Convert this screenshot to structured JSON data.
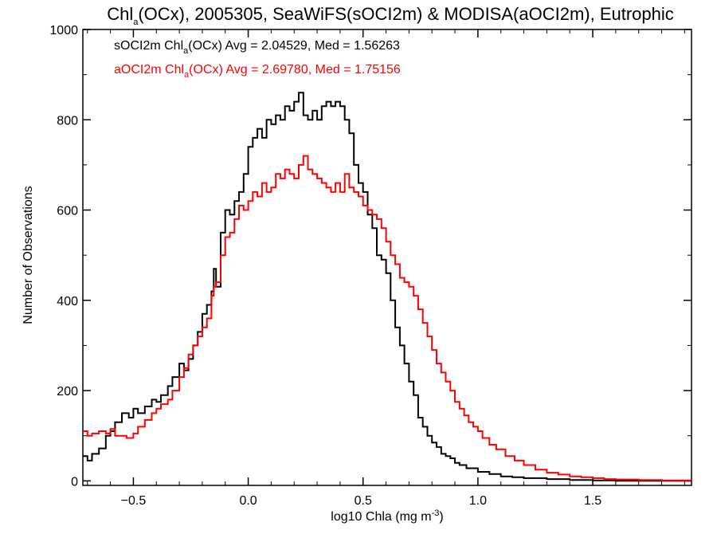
{
  "chart_data": {
    "type": "line",
    "title": {
      "prefix": "Chl",
      "sub": "a",
      "suffix": "(OCx), 2005305, SeaWiFS(sOCI2m) & MODISA(aOCI2m), Eutrophic"
    },
    "xlabel": {
      "prefix": "log10 Chla (mg m",
      "sup": "-3",
      "suffix": ")"
    },
    "ylabel": "Number of Observations",
    "xlim": [
      -0.72,
      1.93
    ],
    "ylim": [
      -10,
      1000
    ],
    "xticks": [
      -0.5,
      0.0,
      0.5,
      1.0,
      1.5
    ],
    "xtick_labels": [
      "−0.5",
      "0.0",
      "0.5",
      "1.0",
      "1.5"
    ],
    "yticks": [
      0,
      200,
      400,
      600,
      800,
      1000
    ],
    "ytick_labels": [
      "0",
      "200",
      "400",
      "600",
      "800",
      "1000"
    ],
    "grid": false,
    "legend": [
      {
        "prefix": "sOCI2m Chl",
        "sub": "a",
        "suffix": "(OCx) Avg = 2.04529, Med = 1.56263",
        "color": "#000000"
      },
      {
        "prefix": "aOCI2m Chl",
        "sub": "a",
        "suffix": "(OCx) Avg = 2.69780, Med = 1.75156",
        "color": "#ff0000"
      }
    ],
    "series": [
      {
        "color": "#000000",
        "style": "step",
        "points": [
          [
            -0.72,
            55
          ],
          [
            -0.7,
            45
          ],
          [
            -0.68,
            60
          ],
          [
            -0.65,
            72
          ],
          [
            -0.62,
            100
          ],
          [
            -0.6,
            110
          ],
          [
            -0.58,
            130
          ],
          [
            -0.55,
            150
          ],
          [
            -0.52,
            140
          ],
          [
            -0.5,
            160
          ],
          [
            -0.48,
            150
          ],
          [
            -0.45,
            165
          ],
          [
            -0.42,
            180
          ],
          [
            -0.4,
            175
          ],
          [
            -0.38,
            190
          ],
          [
            -0.35,
            210
          ],
          [
            -0.33,
            230
          ],
          [
            -0.3,
            260
          ],
          [
            -0.28,
            245
          ],
          [
            -0.26,
            270
          ],
          [
            -0.24,
            300
          ],
          [
            -0.22,
            330
          ],
          [
            -0.2,
            370
          ],
          [
            -0.18,
            390
          ],
          [
            -0.16,
            420
          ],
          [
            -0.15,
            470
          ],
          [
            -0.14,
            430
          ],
          [
            -0.12,
            550
          ],
          [
            -0.1,
            600
          ],
          [
            -0.08,
            590
          ],
          [
            -0.06,
            620
          ],
          [
            -0.04,
            640
          ],
          [
            -0.02,
            680
          ],
          [
            0.0,
            740
          ],
          [
            0.02,
            760
          ],
          [
            0.04,
            780
          ],
          [
            0.06,
            760
          ],
          [
            0.08,
            800
          ],
          [
            0.1,
            790
          ],
          [
            0.12,
            810
          ],
          [
            0.14,
            800
          ],
          [
            0.16,
            830
          ],
          [
            0.18,
            820
          ],
          [
            0.2,
            840
          ],
          [
            0.22,
            860
          ],
          [
            0.24,
            810
          ],
          [
            0.26,
            800
          ],
          [
            0.28,
            820
          ],
          [
            0.3,
            800
          ],
          [
            0.32,
            830
          ],
          [
            0.34,
            840
          ],
          [
            0.36,
            830
          ],
          [
            0.38,
            840
          ],
          [
            0.4,
            830
          ],
          [
            0.42,
            800
          ],
          [
            0.44,
            770
          ],
          [
            0.46,
            700
          ],
          [
            0.48,
            660
          ],
          [
            0.5,
            640
          ],
          [
            0.52,
            590
          ],
          [
            0.54,
            560
          ],
          [
            0.56,
            500
          ],
          [
            0.58,
            490
          ],
          [
            0.6,
            460
          ],
          [
            0.62,
            400
          ],
          [
            0.64,
            340
          ],
          [
            0.66,
            300
          ],
          [
            0.68,
            260
          ],
          [
            0.7,
            220
          ],
          [
            0.72,
            190
          ],
          [
            0.74,
            140
          ],
          [
            0.76,
            120
          ],
          [
            0.78,
            100
          ],
          [
            0.8,
            85
          ],
          [
            0.82,
            75
          ],
          [
            0.84,
            60
          ],
          [
            0.86,
            55
          ],
          [
            0.88,
            50
          ],
          [
            0.9,
            40
          ],
          [
            0.92,
            35
          ],
          [
            0.95,
            28
          ],
          [
            1.0,
            20
          ],
          [
            1.05,
            15
          ],
          [
            1.1,
            10
          ],
          [
            1.15,
            8
          ],
          [
            1.2,
            6
          ],
          [
            1.3,
            4
          ],
          [
            1.4,
            2
          ],
          [
            1.5,
            1
          ],
          [
            1.6,
            0
          ],
          [
            1.93,
            0
          ]
        ]
      },
      {
        "color": "#ff0000",
        "style": "step",
        "points": [
          [
            -0.72,
            110
          ],
          [
            -0.7,
            100
          ],
          [
            -0.68,
            105
          ],
          [
            -0.65,
            110
          ],
          [
            -0.62,
            105
          ],
          [
            -0.6,
            115
          ],
          [
            -0.58,
            100
          ],
          [
            -0.55,
            100
          ],
          [
            -0.53,
            95
          ],
          [
            -0.5,
            105
          ],
          [
            -0.48,
            120
          ],
          [
            -0.45,
            135
          ],
          [
            -0.42,
            150
          ],
          [
            -0.4,
            160
          ],
          [
            -0.38,
            170
          ],
          [
            -0.35,
            180
          ],
          [
            -0.33,
            200
          ],
          [
            -0.3,
            230
          ],
          [
            -0.28,
            250
          ],
          [
            -0.26,
            280
          ],
          [
            -0.24,
            300
          ],
          [
            -0.22,
            320
          ],
          [
            -0.2,
            340
          ],
          [
            -0.18,
            360
          ],
          [
            -0.16,
            410
          ],
          [
            -0.15,
            430
          ],
          [
            -0.14,
            440
          ],
          [
            -0.12,
            500
          ],
          [
            -0.1,
            540
          ],
          [
            -0.08,
            550
          ],
          [
            -0.06,
            580
          ],
          [
            -0.04,
            610
          ],
          [
            -0.02,
            600
          ],
          [
            0.0,
            620
          ],
          [
            0.02,
            640
          ],
          [
            0.04,
            630
          ],
          [
            0.06,
            660
          ],
          [
            0.08,
            640
          ],
          [
            0.1,
            650
          ],
          [
            0.12,
            680
          ],
          [
            0.14,
            670
          ],
          [
            0.16,
            690
          ],
          [
            0.18,
            680
          ],
          [
            0.2,
            670
          ],
          [
            0.22,
            700
          ],
          [
            0.24,
            720
          ],
          [
            0.26,
            690
          ],
          [
            0.28,
            680
          ],
          [
            0.3,
            670
          ],
          [
            0.32,
            660
          ],
          [
            0.34,
            650
          ],
          [
            0.36,
            640
          ],
          [
            0.38,
            660
          ],
          [
            0.4,
            640
          ],
          [
            0.42,
            680
          ],
          [
            0.44,
            650
          ],
          [
            0.46,
            640
          ],
          [
            0.48,
            630
          ],
          [
            0.5,
            610
          ],
          [
            0.52,
            600
          ],
          [
            0.54,
            590
          ],
          [
            0.56,
            580
          ],
          [
            0.58,
            560
          ],
          [
            0.6,
            530
          ],
          [
            0.62,
            500
          ],
          [
            0.64,
            480
          ],
          [
            0.66,
            450
          ],
          [
            0.68,
            440
          ],
          [
            0.7,
            430
          ],
          [
            0.72,
            410
          ],
          [
            0.74,
            380
          ],
          [
            0.76,
            350
          ],
          [
            0.78,
            320
          ],
          [
            0.8,
            290
          ],
          [
            0.82,
            260
          ],
          [
            0.84,
            240
          ],
          [
            0.86,
            220
          ],
          [
            0.88,
            200
          ],
          [
            0.9,
            175
          ],
          [
            0.92,
            160
          ],
          [
            0.94,
            145
          ],
          [
            0.96,
            130
          ],
          [
            0.98,
            120
          ],
          [
            1.0,
            110
          ],
          [
            1.02,
            95
          ],
          [
            1.05,
            80
          ],
          [
            1.08,
            70
          ],
          [
            1.12,
            55
          ],
          [
            1.16,
            45
          ],
          [
            1.2,
            35
          ],
          [
            1.25,
            25
          ],
          [
            1.3,
            18
          ],
          [
            1.35,
            14
          ],
          [
            1.4,
            10
          ],
          [
            1.45,
            8
          ],
          [
            1.5,
            6
          ],
          [
            1.55,
            4
          ],
          [
            1.6,
            3
          ],
          [
            1.7,
            2
          ],
          [
            1.8,
            1
          ],
          [
            1.93,
            0
          ]
        ]
      }
    ]
  }
}
